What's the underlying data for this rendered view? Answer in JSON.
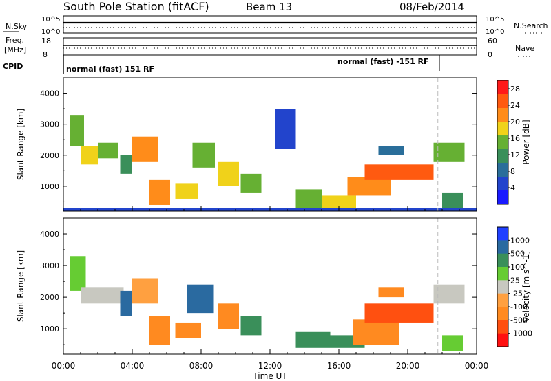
{
  "header": {
    "title": "South Pole Station (fitACF)",
    "beam": "Beam 13",
    "date": "08/Feb/2014"
  },
  "strip_labels": {
    "nsky": "N.Sky",
    "nsearch": "N.Search",
    "freq_line1": "Freq.",
    "freq_line2": "[MHz]",
    "nave": "Nave",
    "cpid": "CPID",
    "nsky_ticks": [
      "10^5",
      "10^0"
    ],
    "nsearch_ticks": [
      "10^5",
      "10^0"
    ],
    "freq_ticks": [
      "18",
      "8"
    ],
    "nave_ticks": [
      "60",
      "0"
    ],
    "cpid_segments": [
      "normal (fast) 151 RF",
      "normal (fast) -151 RF"
    ]
  },
  "colors": {
    "power": [
      "#1a1aff",
      "#2244cc",
      "#2a6e9a",
      "#3a8f5a",
      "#66b033",
      "#f0d21a",
      "#ff8c1a",
      "#ff5a10",
      "#ff1a1a"
    ],
    "velocity": [
      "#2040ff",
      "#2a6aa0",
      "#3a8f5a",
      "#66cc33",
      "#c8c8c0",
      "#ffa040",
      "#ff8a20",
      "#ff5010",
      "#ff1010"
    ]
  },
  "chart_data": [
    {
      "type": "heatmap",
      "title": "",
      "xlabel": "Time UT",
      "ylabel": "Slant Range [km]",
      "ylim": [
        200,
        4500
      ],
      "xlim": [
        "00:00",
        "24:00"
      ],
      "x_ticks": [
        "00:00",
        "04:00",
        "08:00",
        "12:00",
        "16:00",
        "20:00",
        "00:00"
      ],
      "y_ticks": [
        1000,
        2000,
        3000,
        4000
      ],
      "colorbar": {
        "label": "Power [dB]",
        "ticks": [
          4,
          8,
          12,
          16,
          20,
          24,
          28
        ],
        "range": [
          0,
          30
        ]
      },
      "patches": [
        {
          "t0": 0.4,
          "t1": 1.2,
          "r0": 2300,
          "r1": 3300,
          "level": 4
        },
        {
          "t0": 1.0,
          "t1": 2.0,
          "r0": 1700,
          "r1": 2300,
          "level": 5
        },
        {
          "t0": 2.0,
          "t1": 3.2,
          "r0": 1900,
          "r1": 2400,
          "level": 4
        },
        {
          "t0": 3.3,
          "t1": 4.0,
          "r0": 1400,
          "r1": 2000,
          "level": 3
        },
        {
          "t0": 4.0,
          "t1": 5.5,
          "r0": 1800,
          "r1": 2600,
          "level": 6
        },
        {
          "t0": 5.0,
          "t1": 6.2,
          "r0": 400,
          "r1": 1200,
          "level": 6
        },
        {
          "t0": 6.5,
          "t1": 7.8,
          "r0": 600,
          "r1": 1100,
          "level": 5
        },
        {
          "t0": 7.5,
          "t1": 8.8,
          "r0": 1600,
          "r1": 2400,
          "level": 4
        },
        {
          "t0": 9.0,
          "t1": 10.2,
          "r0": 1000,
          "r1": 1800,
          "level": 5
        },
        {
          "t0": 10.3,
          "t1": 11.5,
          "r0": 800,
          "r1": 1400,
          "level": 4
        },
        {
          "t0": 12.3,
          "t1": 13.5,
          "r0": 2200,
          "r1": 3500,
          "level": 1
        },
        {
          "t0": 13.5,
          "t1": 15.0,
          "r0": 300,
          "r1": 900,
          "level": 4
        },
        {
          "t0": 15.0,
          "t1": 17.0,
          "r0": 300,
          "r1": 700,
          "level": 5
        },
        {
          "t0": 16.5,
          "t1": 19.0,
          "r0": 700,
          "r1": 1300,
          "level": 6
        },
        {
          "t0": 17.5,
          "t1": 21.5,
          "r0": 1200,
          "r1": 1700,
          "level": 7
        },
        {
          "t0": 18.3,
          "t1": 19.8,
          "r0": 2000,
          "r1": 2300,
          "level": 2
        },
        {
          "t0": 21.5,
          "t1": 23.3,
          "r0": 1800,
          "r1": 2400,
          "level": 4
        },
        {
          "t0": 22.0,
          "t1": 23.2,
          "r0": 300,
          "r1": 800,
          "level": 3
        },
        {
          "t0": 0.0,
          "t1": 24.0,
          "r0": 200,
          "r1": 300,
          "level": 1
        }
      ]
    },
    {
      "type": "heatmap",
      "title": "",
      "xlabel": "Time UT",
      "ylabel": "Slant Range [km]",
      "ylim": [
        200,
        4500
      ],
      "xlim": [
        "00:00",
        "24:00"
      ],
      "x_ticks": [
        "00:00",
        "04:00",
        "08:00",
        "12:00",
        "16:00",
        "20:00",
        "00:00"
      ],
      "y_ticks": [
        1000,
        2000,
        3000,
        4000
      ],
      "colorbar": {
        "label": "Velocity [m s^-1]",
        "ticks": [
          "1000",
          "500",
          "100",
          "25",
          "-25",
          "-100",
          "-500",
          "-1000"
        ]
      },
      "patches": [
        {
          "t0": 0.4,
          "t1": 1.3,
          "r0": 2200,
          "r1": 3300,
          "level": 3
        },
        {
          "t0": 1.0,
          "t1": 3.5,
          "r0": 1800,
          "r1": 2300,
          "level": 4
        },
        {
          "t0": 3.3,
          "t1": 4.0,
          "r0": 1400,
          "r1": 2200,
          "level": 1
        },
        {
          "t0": 4.0,
          "t1": 5.5,
          "r0": 1800,
          "r1": 2600,
          "level": 5
        },
        {
          "t0": 5.0,
          "t1": 6.2,
          "r0": 500,
          "r1": 1400,
          "level": 6
        },
        {
          "t0": 6.5,
          "t1": 8.0,
          "r0": 700,
          "r1": 1200,
          "level": 6
        },
        {
          "t0": 7.2,
          "t1": 8.7,
          "r0": 1500,
          "r1": 2400,
          "level": 1
        },
        {
          "t0": 9.0,
          "t1": 10.2,
          "r0": 1000,
          "r1": 1800,
          "level": 6
        },
        {
          "t0": 10.3,
          "t1": 11.5,
          "r0": 800,
          "r1": 1400,
          "level": 2
        },
        {
          "t0": 13.5,
          "t1": 15.5,
          "r0": 400,
          "r1": 900,
          "level": 2
        },
        {
          "t0": 15.5,
          "t1": 17.5,
          "r0": 400,
          "r1": 800,
          "level": 2
        },
        {
          "t0": 16.8,
          "t1": 19.5,
          "r0": 500,
          "r1": 1300,
          "level": 6
        },
        {
          "t0": 17.5,
          "t1": 21.5,
          "r0": 1200,
          "r1": 1800,
          "level": 7
        },
        {
          "t0": 18.3,
          "t1": 19.8,
          "r0": 2000,
          "r1": 2300,
          "level": 6
        },
        {
          "t0": 21.5,
          "t1": 23.3,
          "r0": 1800,
          "r1": 2400,
          "level": 4
        },
        {
          "t0": 22.0,
          "t1": 23.2,
          "r0": 300,
          "r1": 800,
          "level": 3
        }
      ]
    }
  ]
}
